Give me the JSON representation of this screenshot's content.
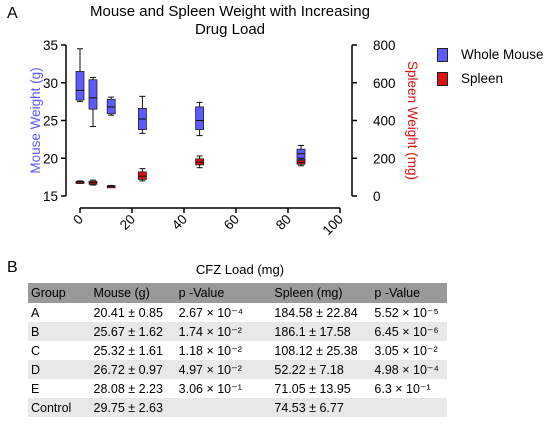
{
  "panel_labels": {
    "a": "A",
    "b": "B"
  },
  "chart_data": {
    "type": "box",
    "title": "Mouse and Spleen Weight with Increasing Drug Load",
    "title_lines": [
      "Mouse and Spleen Weight with Increasing",
      "Drug Load"
    ],
    "xlabel": "CFZ Load (mg)",
    "ylabel_left": "Mouse Weight (g)",
    "ylabel_right": "Spleen Weight (mg)",
    "xlim": [
      -5,
      100
    ],
    "xticks": [
      0,
      20,
      40,
      60,
      80,
      100
    ],
    "ylim_left": [
      15,
      35
    ],
    "yticks_left": [
      15,
      20,
      25,
      30,
      35
    ],
    "ylim_right": [
      0,
      800
    ],
    "yticks_right": [
      0,
      200,
      400,
      600,
      800
    ],
    "legend_position": "top-right",
    "series": [
      {
        "name": "Whole Mouse",
        "color": "#5b5bff",
        "axis": "left",
        "boxes": [
          {
            "x": 0,
            "min": 27.5,
            "q1": 27.7,
            "median": 29.0,
            "q3": 31.5,
            "max": 34.5
          },
          {
            "x": 5,
            "min": 24.2,
            "q1": 26.5,
            "median": 28.0,
            "q3": 30.4,
            "max": 30.7
          },
          {
            "x": 12,
            "min": 25.7,
            "q1": 25.9,
            "median": 26.8,
            "q3": 27.8,
            "max": 28.1
          },
          {
            "x": 24,
            "min": 23.3,
            "q1": 23.8,
            "median": 25.2,
            "q3": 26.6,
            "max": 28.2
          },
          {
            "x": 46,
            "min": 23.0,
            "q1": 23.8,
            "median": 25.0,
            "q3": 26.8,
            "max": 27.4
          },
          {
            "x": 85,
            "min": 19.5,
            "q1": 19.8,
            "median": 20.6,
            "q3": 21.2,
            "max": 21.7
          }
        ]
      },
      {
        "name": "Spleen",
        "color": "#e01010",
        "axis": "right",
        "boxes": [
          {
            "x": 0,
            "min": 67,
            "q1": 70,
            "median": 74,
            "q3": 77,
            "max": 80
          },
          {
            "x": 5,
            "min": 58,
            "q1": 62,
            "median": 70,
            "q3": 78,
            "max": 84
          },
          {
            "x": 12,
            "min": 47,
            "q1": 49,
            "median": 51,
            "q3": 54,
            "max": 56
          },
          {
            "x": 24,
            "min": 80,
            "q1": 88,
            "median": 105,
            "q3": 128,
            "max": 145
          },
          {
            "x": 46,
            "min": 150,
            "q1": 165,
            "median": 180,
            "q3": 197,
            "max": 212
          },
          {
            "x": 85,
            "min": 160,
            "q1": 168,
            "median": 178,
            "q3": 190,
            "max": 200
          }
        ]
      }
    ]
  },
  "table": {
    "headers": [
      "Group",
      "Mouse (g)",
      "p -Value",
      "Spleen (mg)",
      "p -Value"
    ],
    "rows": [
      [
        "A",
        "20.41 ± 0.85",
        "2.67 × 10⁻⁴",
        "184.58 ± 22.84",
        "5.52 × 10⁻⁵"
      ],
      [
        "B",
        "25.67 ± 1.62",
        "1.74 × 10⁻²",
        "186.1 ± 17.58",
        "6.45 × 10⁻⁶"
      ],
      [
        "C",
        "25.32 ± 1.61",
        "1.18 × 10⁻²",
        "108.12 ± 25.38",
        "3.05 × 10⁻²"
      ],
      [
        "D",
        "26.72 ± 0.97",
        "4.97 × 10⁻²",
        "52.22 ± 7.18",
        "4.98 × 10⁻⁴"
      ],
      [
        "E",
        "28.08 ± 2.23",
        "3.06 × 10⁻¹",
        "71.05 ± 13.95",
        "6.3 × 10⁻¹"
      ],
      [
        "Control",
        "29.75 ± 2.63",
        "",
        "74.53 ± 6.77",
        ""
      ]
    ]
  }
}
